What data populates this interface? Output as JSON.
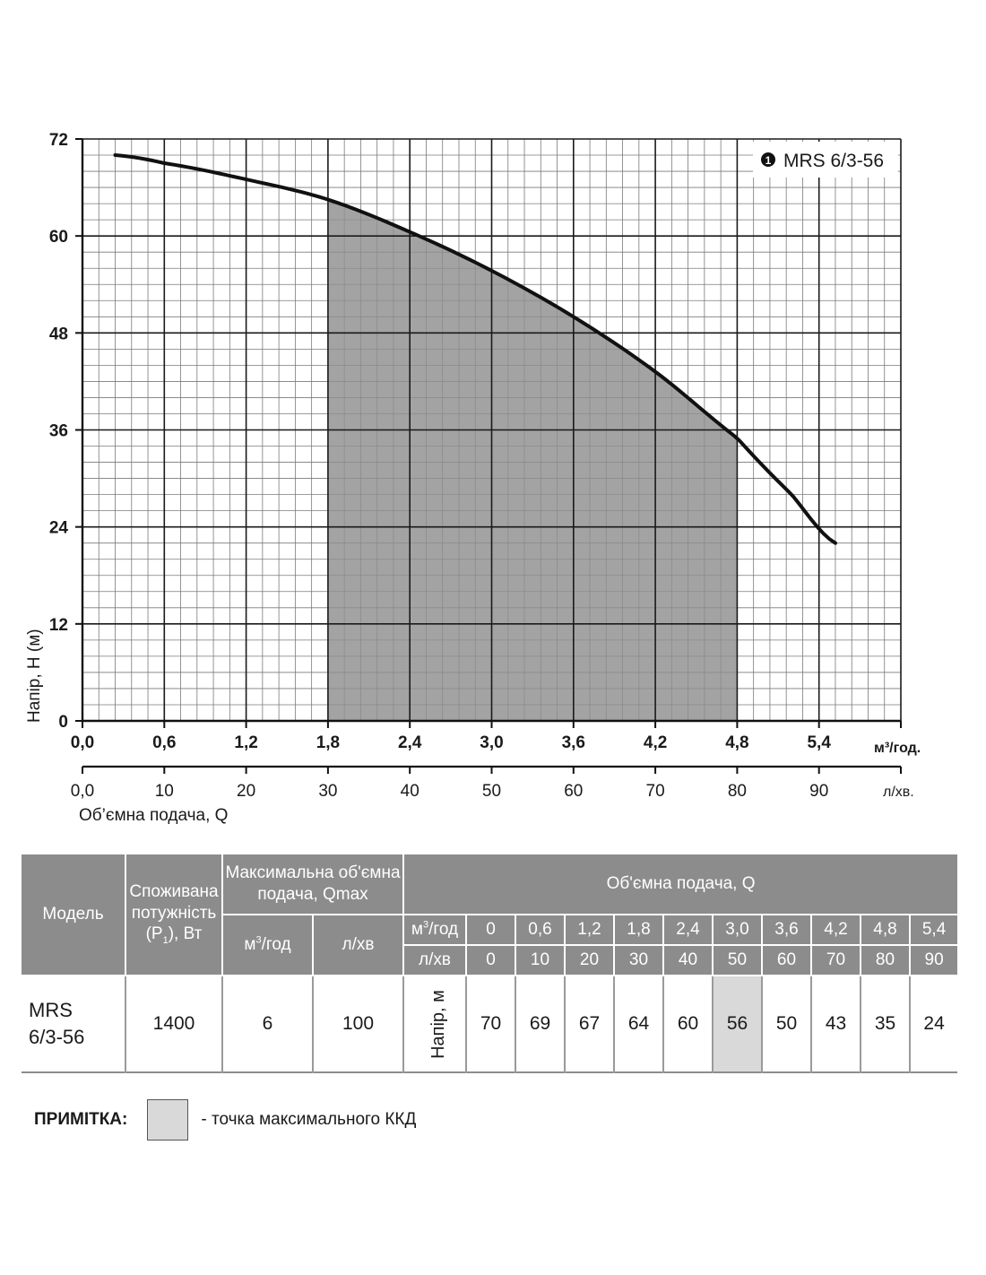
{
  "chart_data": {
    "type": "line",
    "model_label": "MRS 6/3-56",
    "legend_marker": "1",
    "ylabel": "Напір, H (м)",
    "ylim": [
      0,
      72
    ],
    "y_ticks": [
      "0",
      "12",
      "24",
      "36",
      "48",
      "60",
      "72"
    ],
    "xlim": [
      0,
      6.0
    ],
    "x_ticks": [
      "0,0",
      "0,6",
      "1,2",
      "1,8",
      "2,4",
      "3,0",
      "3,6",
      "4,2",
      "4,8",
      "5,4"
    ],
    "x_unit": "м³/год.",
    "x2_ticks": [
      "0,0",
      "10",
      "20",
      "30",
      "40",
      "50",
      "60",
      "70",
      "80",
      "90"
    ],
    "x2_unit": "л/хв.",
    "xlabel": "Об’ємна подача, Q",
    "working_range": [
      1.8,
      4.8
    ],
    "series": [
      {
        "x": [
          0.24,
          0.6,
          1.2,
          1.8,
          2.4,
          3.0,
          3.6,
          4.2,
          4.8,
          5.2,
          5.52
        ],
        "y": [
          70,
          69,
          67,
          64.5,
          60.5,
          55.7,
          50,
          43.2,
          35,
          28,
          22
        ]
      }
    ]
  },
  "table": {
    "header": {
      "model": "Модель",
      "power_l1": "Споживана",
      "power_l2": "потужність",
      "power_l3a": "(P",
      "power_l3sub": "1",
      "power_l3b": "), Вт",
      "qmax_l1": "Максимальна об'ємна",
      "qmax_l2": "подача, Qmax",
      "qmax_unit_m3a": "м",
      "qmax_unit_m3sup": "3",
      "qmax_unit_m3b": "/год",
      "qmax_unit_l": "л/хв",
      "flow": "Об'ємна подача, Q",
      "row_m3a": "м",
      "row_m3sup": "3",
      "row_m3b": "/год",
      "row_l": "л/хв",
      "m3_values": [
        "0",
        "0,6",
        "1,2",
        "1,8",
        "2,4",
        "3,0",
        "3,6",
        "4,2",
        "4,8",
        "5,4"
      ],
      "l_values": [
        "0",
        "10",
        "20",
        "30",
        "40",
        "50",
        "60",
        "70",
        "80",
        "90"
      ]
    },
    "row": {
      "model_l1": "MRS",
      "model_l2": "6/3-56",
      "power": "1400",
      "qmax_m3": "6",
      "qmax_l": "100",
      "head_label": "Напір, м",
      "head_values": [
        "70",
        "69",
        "67",
        "64",
        "60",
        "56",
        "50",
        "43",
        "35",
        "24"
      ],
      "highlight_index": 5
    },
    "highlight_color": "#d9d9d9"
  },
  "note": {
    "label": "ПРИМІТКА:",
    "text": "- точка максимального ККД"
  }
}
